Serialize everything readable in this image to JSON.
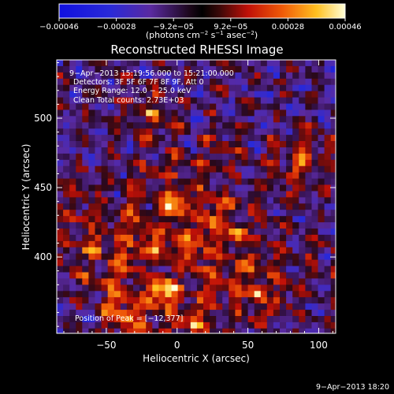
{
  "colorbar": {
    "tick_labels": [
      "−0.00046",
      "−0.00028",
      "−9.2e−05",
      "9.2e−05",
      "0.00028",
      "0.00046"
    ],
    "units_main": "(photons cm",
    "units_sup1": "−2",
    "units_mid": " s",
    "units_sup2": "−1",
    "units_end": " asec",
    "units_sup3": "−2",
    "units_close": ")",
    "vmin": -0.00046,
    "vmax": 0.00046
  },
  "chart_data": {
    "type": "heatmap",
    "title": "Reconstructed RHESSI Image",
    "xlabel": "Heliocentric X (arcsec)",
    "ylabel": "Heliocentric Y (arcsec)",
    "xlim": [
      -85,
      112
    ],
    "ylim": [
      345,
      542
    ],
    "x_ticks": [
      -50,
      0,
      50,
      100
    ],
    "y_ticks": [
      400,
      450,
      500
    ],
    "x_tick_labels": [
      "−50",
      "0",
      "50",
      "100"
    ],
    "y_tick_labels": [
      "400",
      "450",
      "500"
    ],
    "colormap": "rhessi-diverging",
    "annotation_lines": [
      "9−Apr−2013 15:19:56.000 to 15:21:00.000",
      "Detectors: 3F 5F 6F 7F 8F 9F, Att 0",
      "Energy Range: 12.0 − 25.0 keV",
      "Clean     Total counts: 2.73E+03"
    ],
    "peak_label": "Position of Peak = [−12,377]",
    "peak": [
      -12,
      377
    ]
  },
  "footer_timestamp": "9−Apr−2013 18:20"
}
